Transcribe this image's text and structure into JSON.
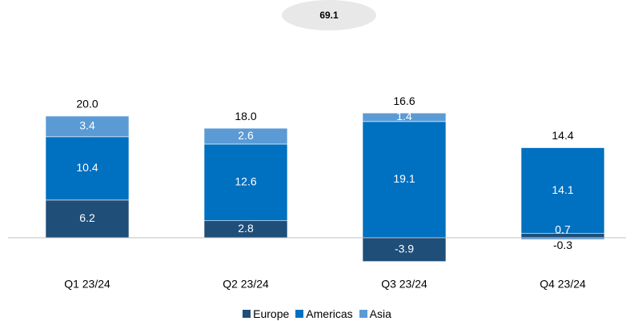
{
  "chart_data": {
    "type": "bar",
    "stacked": true,
    "categories": [
      "Q1 23/24",
      "Q2 23/24",
      "Q3 23/24",
      "Q4 23/24"
    ],
    "series": [
      {
        "name": "Europe",
        "color": "#1f4e79",
        "values": [
          6.2,
          2.8,
          -3.9,
          0.7
        ]
      },
      {
        "name": "Americas",
        "color": "#0070c0",
        "values": [
          10.4,
          12.6,
          19.1,
          14.1
        ]
      },
      {
        "name": "Asia",
        "color": "#5b9bd5",
        "values": [
          3.4,
          2.6,
          1.4,
          -0.3
        ]
      }
    ],
    "totals": [
      "20.0",
      "18.0",
      "16.6",
      "14.4"
    ],
    "value_labels": [
      [
        "6.2",
        "2.8",
        "-3.9",
        "0.7"
      ],
      [
        "10.4",
        "12.6",
        "19.1",
        "14.1"
      ],
      [
        "3.4",
        "2.6",
        "1.4",
        "-0.3"
      ]
    ],
    "grand_total": "69.1",
    "ylim": [
      -4.5,
      25
    ],
    "legend_position": "bottom",
    "grid": false
  }
}
